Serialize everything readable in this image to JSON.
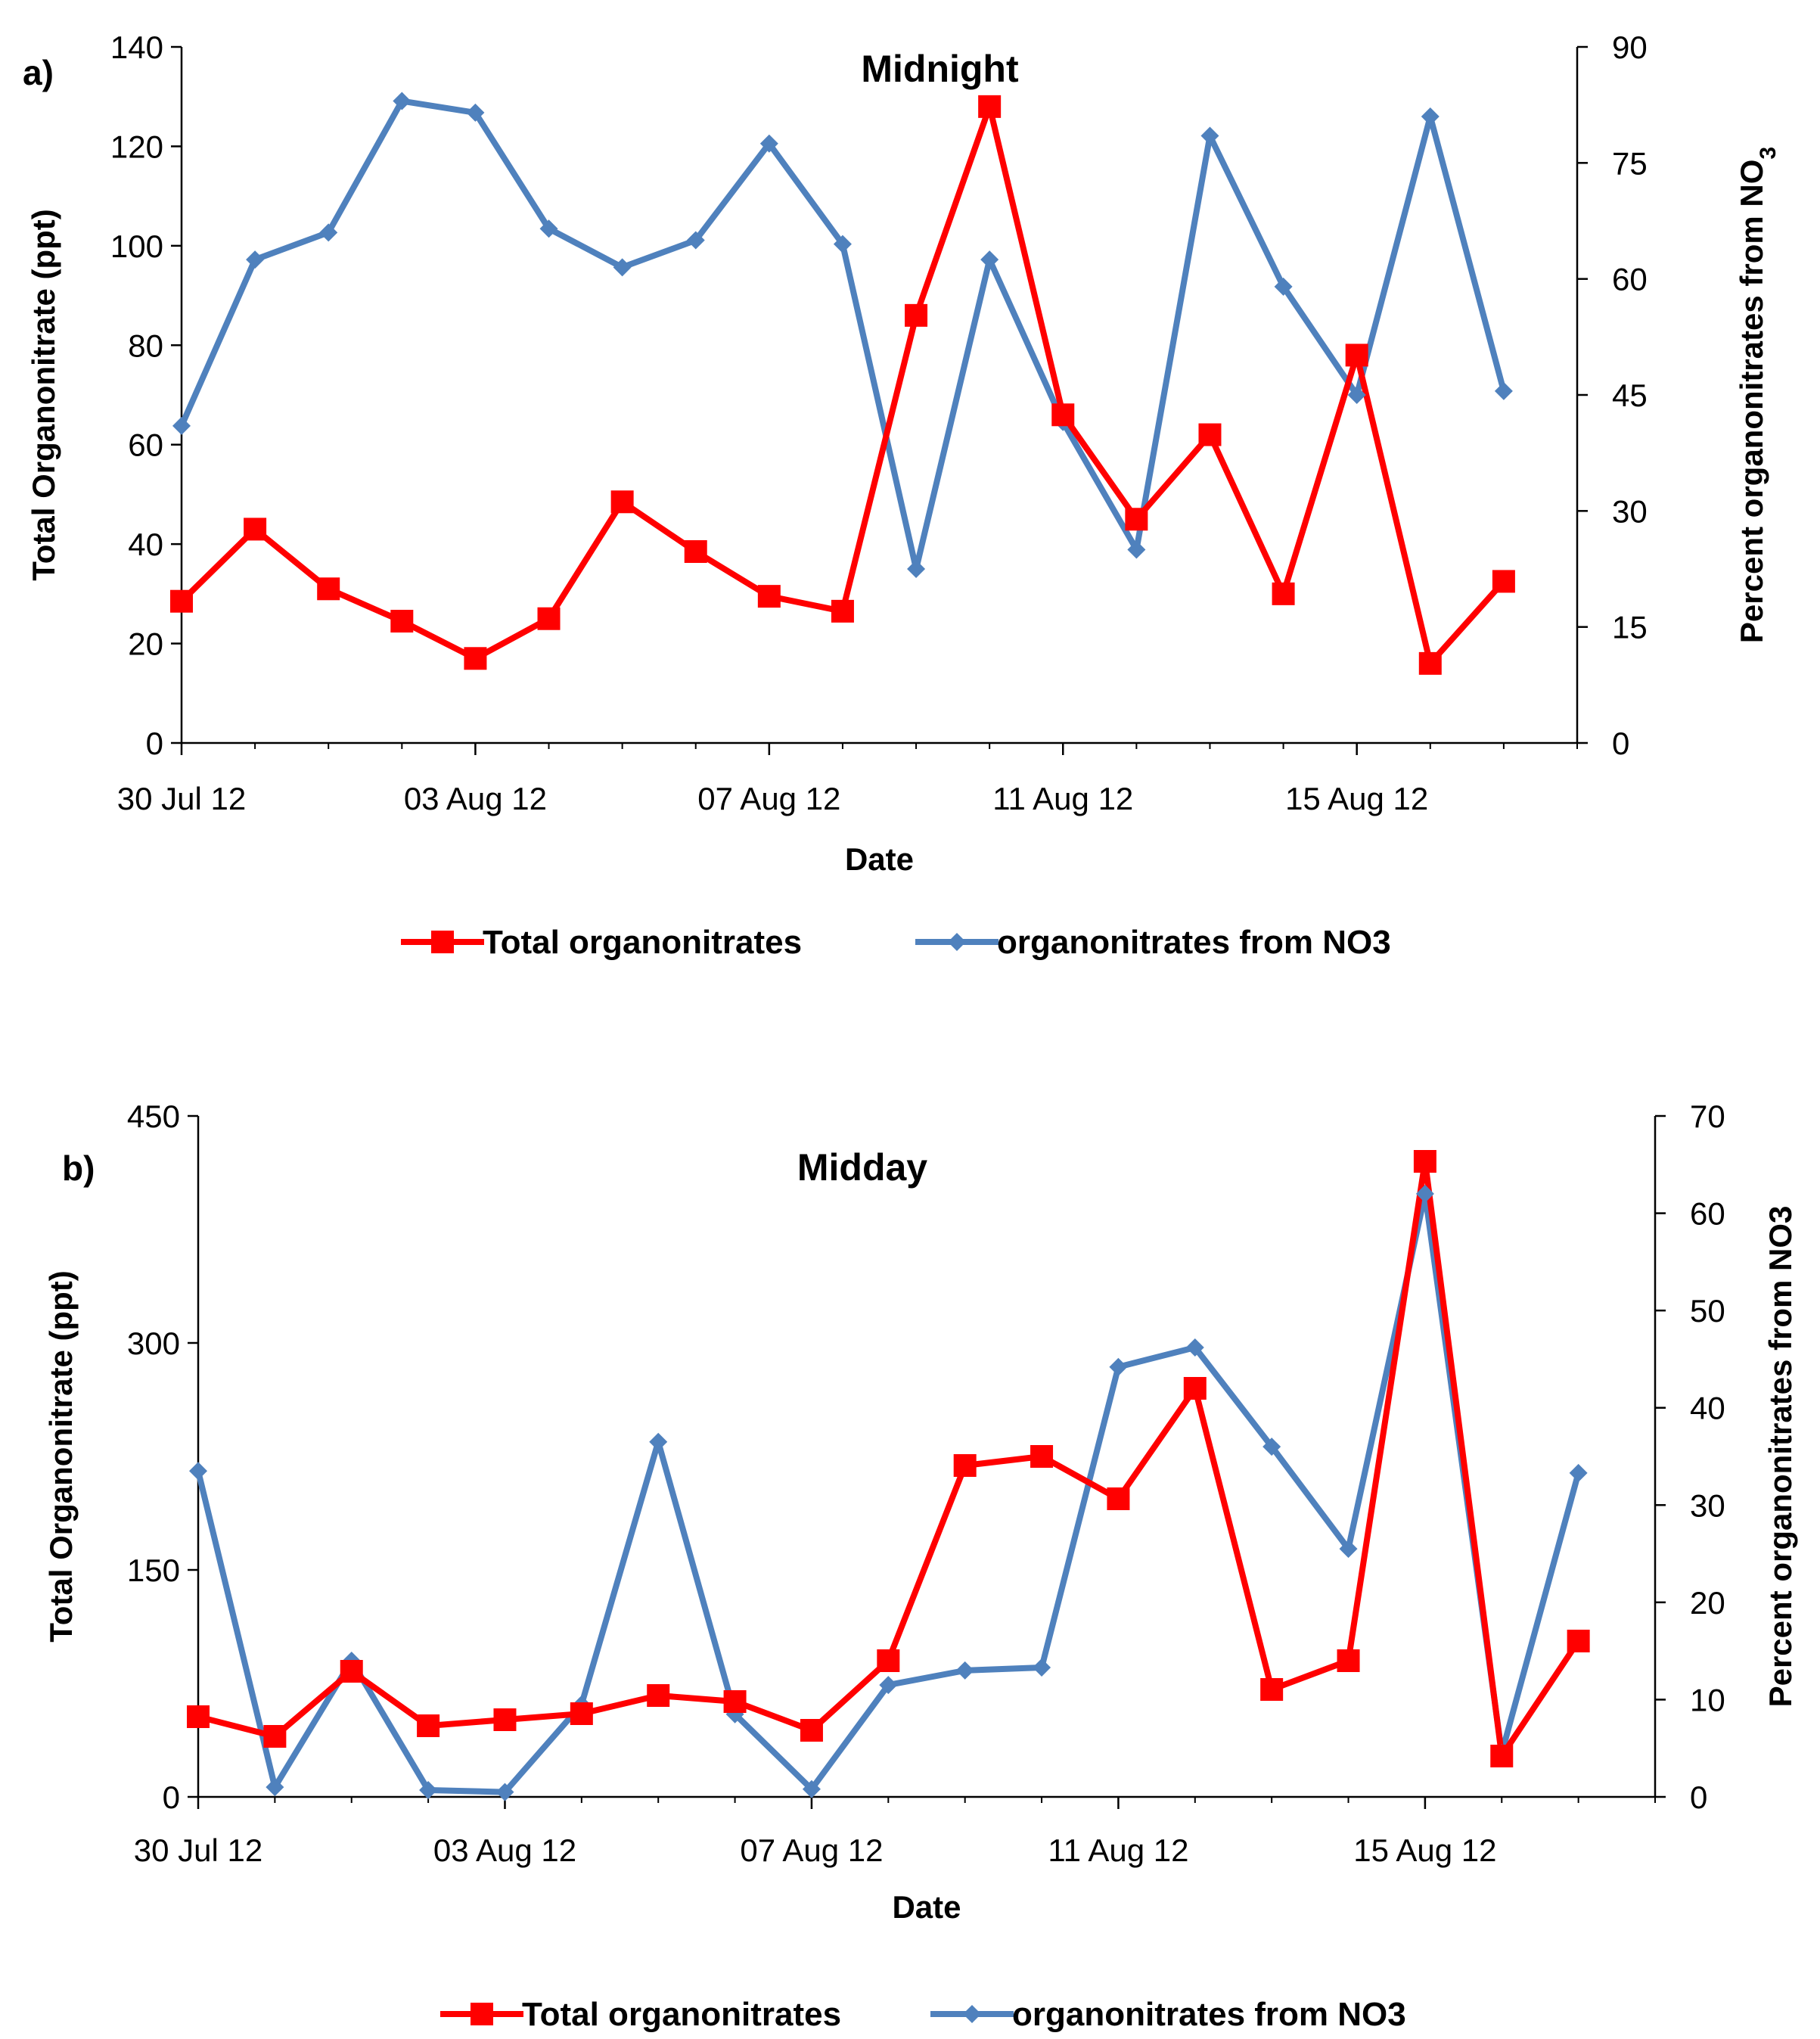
{
  "chart_data": [
    {
      "type": "line",
      "panel_label": "a)",
      "title": "Midnight",
      "xlabel": "Date",
      "ylabel": "Total Organonitrate (ppt)",
      "y2label": "Percent organonitrates from NO",
      "y2label_sub": "3",
      "xlim": [
        "30 Jul 12",
        "18 Aug 12"
      ],
      "ylim": [
        0,
        140
      ],
      "y2lim": [
        0,
        90
      ],
      "yticks": [
        "0",
        "20",
        "40",
        "60",
        "80",
        "100",
        "120",
        "140"
      ],
      "y2ticks": [
        "0",
        "15",
        "30",
        "45",
        "60",
        "75",
        "90"
      ],
      "xticks": [
        "30 Jul 12",
        "03 Aug 12",
        "07 Aug 12",
        "11 Aug 12",
        "15 Aug 12"
      ],
      "legend_position": "bottom",
      "series": [
        {
          "name": "Total organonitrates",
          "axis": "left",
          "color": "#ff0000",
          "marker": "square",
          "x": [
            "30 Jul 12",
            "31 Jul 12",
            "01 Aug 12",
            "02 Aug 12",
            "03 Aug 12",
            "04 Aug 12",
            "05 Aug 12",
            "06 Aug 12",
            "07 Aug 12",
            "08 Aug 12",
            "09 Aug 12",
            "10 Aug 12",
            "11 Aug 12",
            "12 Aug 12",
            "13 Aug 12",
            "14 Aug 12",
            "15 Aug 12",
            "16 Aug 12",
            "17 Aug 12"
          ],
          "values": [
            28.5,
            43,
            31,
            24.5,
            17,
            25,
            48.5,
            38.5,
            29.5,
            26.5,
            86,
            128,
            66,
            45,
            62,
            30,
            78,
            16,
            32.5
          ]
        },
        {
          "name": "organonitrates from NO3",
          "axis": "right",
          "color": "#4f81bd",
          "marker": "diamond",
          "x": [
            "30 Jul 12",
            "31 Jul 12",
            "01 Aug 12",
            "02 Aug 12",
            "03 Aug 12",
            "04 Aug 12",
            "05 Aug 12",
            "06 Aug 12",
            "07 Aug 12",
            "08 Aug 12",
            "09 Aug 12",
            "10 Aug 12",
            "11 Aug 12",
            "12 Aug 12",
            "13 Aug 12",
            "14 Aug 12",
            "15 Aug 12",
            "16 Aug 12",
            "17 Aug 12"
          ],
          "values": [
            41,
            62.5,
            66,
            83,
            81.5,
            66.5,
            61.5,
            65,
            77.5,
            64.5,
            22.5,
            62.5,
            41.5,
            25,
            78.5,
            59,
            45,
            81,
            45.5
          ]
        }
      ]
    },
    {
      "type": "line",
      "panel_label": "b)",
      "title": "Midday",
      "xlabel": "Date",
      "ylabel": "Total Organonitrate (ppt)",
      "y2label": "Percent organonitrates from NO3",
      "y2label_sub": "",
      "xlim": [
        "30 Jul 12",
        "18 Aug 12"
      ],
      "ylim": [
        0,
        450
      ],
      "y2lim": [
        0,
        70
      ],
      "yticks": [
        "0",
        "150",
        "300",
        "450"
      ],
      "y2ticks": [
        "0",
        "10",
        "20",
        "30",
        "40",
        "50",
        "60",
        "70"
      ],
      "xticks": [
        "30 Jul 12",
        "03 Aug 12",
        "07 Aug 12",
        "11 Aug 12",
        "15 Aug 12"
      ],
      "legend_position": "bottom",
      "series": [
        {
          "name": "Total organonitrates",
          "axis": "left",
          "color": "#ff0000",
          "marker": "square",
          "x": [
            "30 Jul 12",
            "31 Jul 12",
            "01 Aug 12",
            "02 Aug 12",
            "03 Aug 12",
            "04 Aug 12",
            "05 Aug 12",
            "06 Aug 12",
            "07 Aug 12",
            "08 Aug 12",
            "09 Aug 12",
            "10 Aug 12",
            "11 Aug 12",
            "12 Aug 12",
            "13 Aug 12",
            "14 Aug 12",
            "15 Aug 12",
            "16 Aug 12",
            "17 Aug 12"
          ],
          "values": [
            53,
            40,
            83,
            47,
            51,
            55,
            67,
            63,
            44,
            90,
            219,
            225,
            197,
            270,
            71,
            90,
            420,
            27,
            103
          ]
        },
        {
          "name": "organonitrates from NO3",
          "axis": "right",
          "color": "#4f81bd",
          "marker": "diamond",
          "x": [
            "30 Jul 12",
            "31 Jul 12",
            "01 Aug 12",
            "02 Aug 12",
            "03 Aug 12",
            "04 Aug 12",
            "05 Aug 12",
            "06 Aug 12",
            "07 Aug 12",
            "08 Aug 12",
            "09 Aug 12",
            "10 Aug 12",
            "11 Aug 12",
            "12 Aug 12",
            "13 Aug 12",
            "14 Aug 12",
            "15 Aug 12",
            "16 Aug 12",
            "17 Aug 12"
          ],
          "values": [
            33.5,
            1,
            14,
            0.7,
            0.5,
            9.5,
            36.5,
            8.5,
            0.8,
            11.5,
            13,
            13.3,
            44.2,
            46.2,
            36,
            25.5,
            62,
            4.5,
            33.3
          ]
        }
      ]
    }
  ]
}
